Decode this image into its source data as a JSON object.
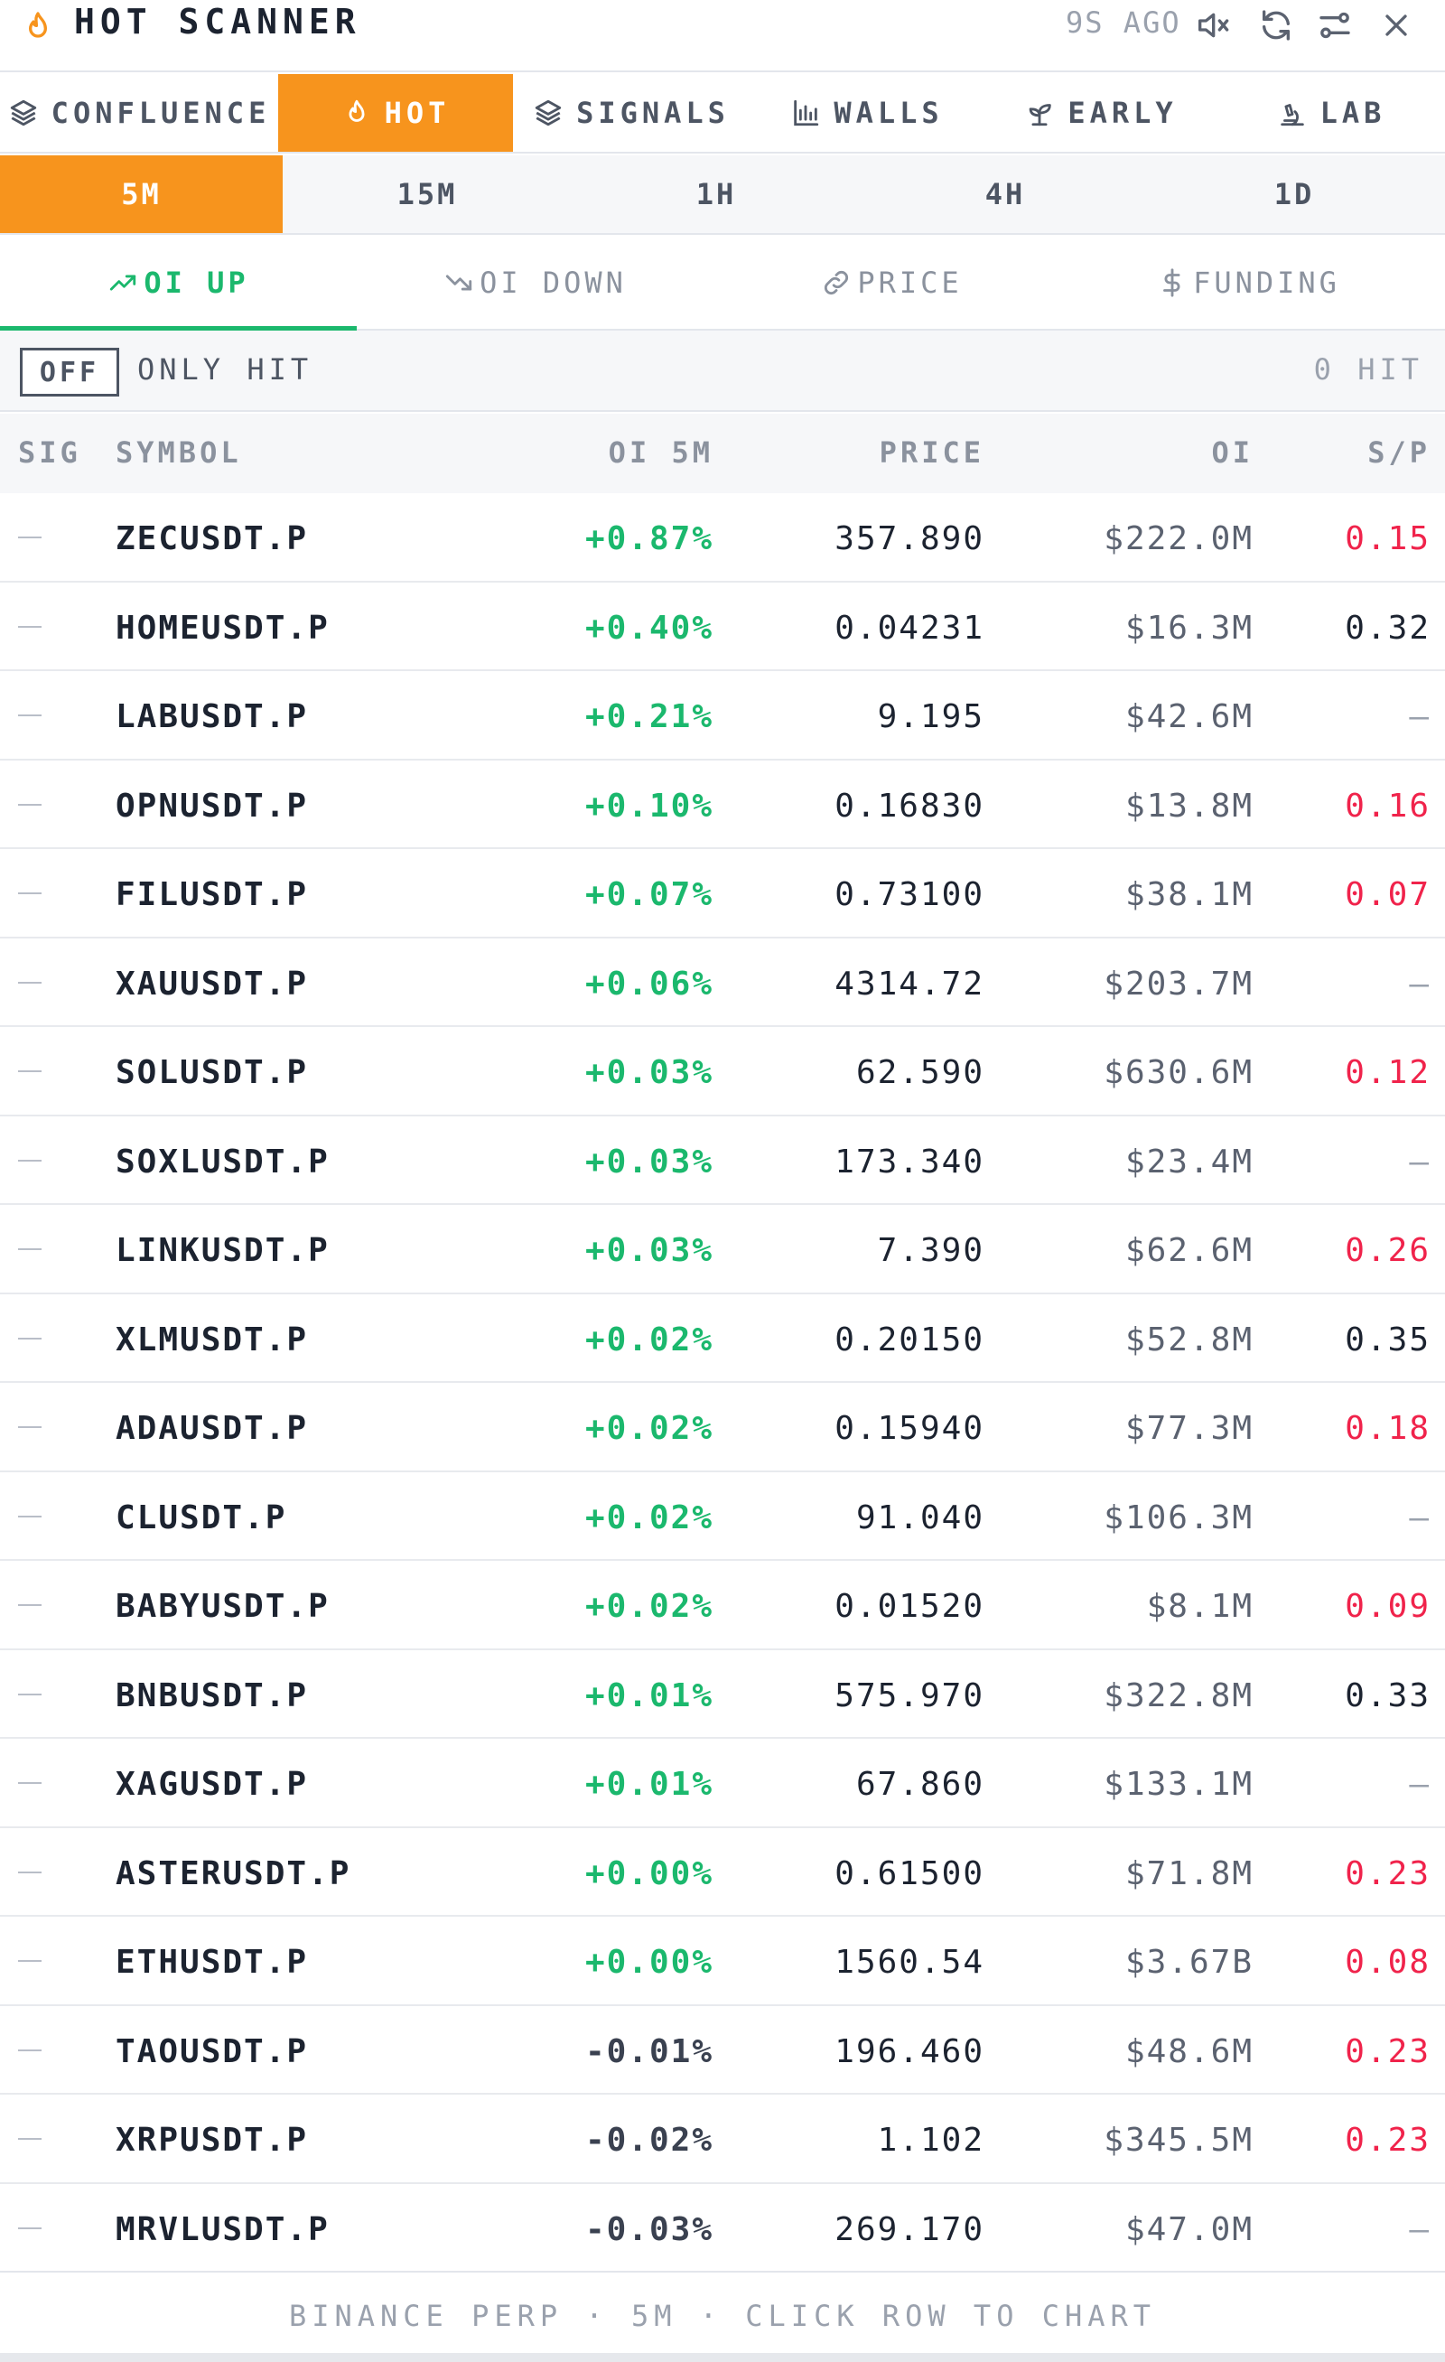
{
  "header": {
    "title": "HOT SCANNER",
    "updated": "9S AGO"
  },
  "main_tabs": [
    {
      "label": "CONFLUENCE",
      "icon": "layers-icon"
    },
    {
      "label": "HOT",
      "icon": "flame-icon",
      "active": true
    },
    {
      "label": "SIGNALS",
      "icon": "layers-icon"
    },
    {
      "label": "WALLS",
      "icon": "bar-chart-icon"
    },
    {
      "label": "EARLY",
      "icon": "sprout-icon"
    },
    {
      "label": "LAB",
      "icon": "microscope-icon"
    }
  ],
  "timeframes": [
    {
      "label": "5M",
      "active": true
    },
    {
      "label": "15M"
    },
    {
      "label": "1H"
    },
    {
      "label": "4H"
    },
    {
      "label": "1D"
    }
  ],
  "sort_tabs": [
    {
      "label": "OI UP",
      "icon": "trending-up-icon",
      "active": true
    },
    {
      "label": "OI DOWN",
      "icon": "trending-down-icon"
    },
    {
      "label": "PRICE",
      "icon": "link-icon"
    },
    {
      "label": "FUNDING",
      "icon": "dollar-icon"
    }
  ],
  "filter": {
    "toggle": "OFF",
    "label": "ONLY HIT",
    "hit_count": "0 HIT"
  },
  "columns": {
    "sig": "SIG",
    "symbol": "SYMBOL",
    "oi_change": "OI 5M",
    "price": "PRICE",
    "oi": "OI",
    "sp": "S/P"
  },
  "rows": [
    {
      "symbol": "ZECUSDT.P",
      "oi_change": "+0.87%",
      "price": "357.890",
      "oi": "$222.0M",
      "sp": "0.15",
      "sp_tone": "red"
    },
    {
      "symbol": "HOMEUSDT.P",
      "oi_change": "+0.40%",
      "price": "0.04231",
      "oi": "$16.3M",
      "sp": "0.32",
      "sp_tone": "dark"
    },
    {
      "symbol": "LABUSDT.P",
      "oi_change": "+0.21%",
      "price": "9.195",
      "oi": "$42.6M",
      "sp": "—",
      "sp_tone": "dash"
    },
    {
      "symbol": "OPNUSDT.P",
      "oi_change": "+0.10%",
      "price": "0.16830",
      "oi": "$13.8M",
      "sp": "0.16",
      "sp_tone": "red"
    },
    {
      "symbol": "FILUSDT.P",
      "oi_change": "+0.07%",
      "price": "0.73100",
      "oi": "$38.1M",
      "sp": "0.07",
      "sp_tone": "red"
    },
    {
      "symbol": "XAUUSDT.P",
      "oi_change": "+0.06%",
      "price": "4314.72",
      "oi": "$203.7M",
      "sp": "—",
      "sp_tone": "dash"
    },
    {
      "symbol": "SOLUSDT.P",
      "oi_change": "+0.03%",
      "price": "62.590",
      "oi": "$630.6M",
      "sp": "0.12",
      "sp_tone": "red"
    },
    {
      "symbol": "SOXLUSDT.P",
      "oi_change": "+0.03%",
      "price": "173.340",
      "oi": "$23.4M",
      "sp": "—",
      "sp_tone": "dash"
    },
    {
      "symbol": "LINKUSDT.P",
      "oi_change": "+0.03%",
      "price": "7.390",
      "oi": "$62.6M",
      "sp": "0.26",
      "sp_tone": "red"
    },
    {
      "symbol": "XLMUSDT.P",
      "oi_change": "+0.02%",
      "price": "0.20150",
      "oi": "$52.8M",
      "sp": "0.35",
      "sp_tone": "dark"
    },
    {
      "symbol": "ADAUSDT.P",
      "oi_change": "+0.02%",
      "price": "0.15940",
      "oi": "$77.3M",
      "sp": "0.18",
      "sp_tone": "red"
    },
    {
      "symbol": "CLUSDT.P",
      "oi_change": "+0.02%",
      "price": "91.040",
      "oi": "$106.3M",
      "sp": "—",
      "sp_tone": "dash"
    },
    {
      "symbol": "BABYUSDT.P",
      "oi_change": "+0.02%",
      "price": "0.01520",
      "oi": "$8.1M",
      "sp": "0.09",
      "sp_tone": "red"
    },
    {
      "symbol": "BNBUSDT.P",
      "oi_change": "+0.01%",
      "price": "575.970",
      "oi": "$322.8M",
      "sp": "0.33",
      "sp_tone": "dark"
    },
    {
      "symbol": "XAGUSDT.P",
      "oi_change": "+0.01%",
      "price": "67.860",
      "oi": "$133.1M",
      "sp": "—",
      "sp_tone": "dash"
    },
    {
      "symbol": "ASTERUSDT.P",
      "oi_change": "+0.00%",
      "price": "0.61500",
      "oi": "$71.8M",
      "sp": "0.23",
      "sp_tone": "red"
    },
    {
      "symbol": "ETHUSDT.P",
      "oi_change": "+0.00%",
      "price": "1560.54",
      "oi": "$3.67B",
      "sp": "0.08",
      "sp_tone": "red"
    },
    {
      "symbol": "TAOUSDT.P",
      "oi_change": "-0.01%",
      "price": "196.460",
      "oi": "$48.6M",
      "sp": "0.23",
      "sp_tone": "red"
    },
    {
      "symbol": "XRPUSDT.P",
      "oi_change": "-0.02%",
      "price": "1.102",
      "oi": "$345.5M",
      "sp": "0.23",
      "sp_tone": "red"
    },
    {
      "symbol": "MRVLUSDT.P",
      "oi_change": "-0.03%",
      "price": "269.170",
      "oi": "$47.0M",
      "sp": "—",
      "sp_tone": "dash"
    }
  ],
  "footer": "BINANCE PERP · 5M · CLICK ROW TO CHART",
  "colors": {
    "accent": "#f7941d",
    "positive": "#1bb86d",
    "negative_sp": "#f0234b"
  }
}
